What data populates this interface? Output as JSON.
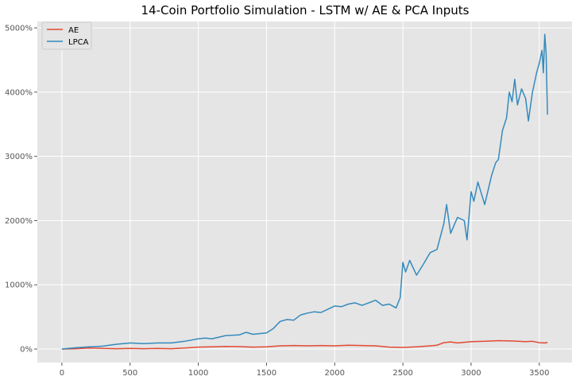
{
  "chart_data": {
    "type": "line",
    "title": "14-Coin Portfolio Simulation - LSTM w/ AE & PCA Inputs",
    "xlabel": "",
    "ylabel": "",
    "xlim": [
      -180,
      3740
    ],
    "ylim": [
      -210,
      5100
    ],
    "xticks": [
      0,
      500,
      1000,
      1500,
      2000,
      2500,
      3000,
      3500
    ],
    "xtick_labels": [
      "0",
      "500",
      "1000",
      "1500",
      "2000",
      "2500",
      "3000",
      "3500"
    ],
    "yticks": [
      0,
      1000,
      2000,
      3000,
      4000,
      5000
    ],
    "ytick_labels": [
      "0%",
      "1000%",
      "2000%",
      "3000%",
      "4000%",
      "5000%"
    ],
    "grid": true,
    "legend_position": "top-left",
    "series": [
      {
        "name": "AE",
        "color": "#E24A33",
        "points": [
          [
            0,
            0
          ],
          [
            100,
            5
          ],
          [
            200,
            15
          ],
          [
            300,
            10
          ],
          [
            400,
            5
          ],
          [
            500,
            10
          ],
          [
            600,
            5
          ],
          [
            700,
            10
          ],
          [
            800,
            5
          ],
          [
            900,
            15
          ],
          [
            1000,
            30
          ],
          [
            1100,
            35
          ],
          [
            1200,
            40
          ],
          [
            1300,
            38
          ],
          [
            1400,
            30
          ],
          [
            1500,
            35
          ],
          [
            1600,
            50
          ],
          [
            1700,
            55
          ],
          [
            1800,
            50
          ],
          [
            1900,
            55
          ],
          [
            2000,
            50
          ],
          [
            2100,
            60
          ],
          [
            2200,
            55
          ],
          [
            2300,
            50
          ],
          [
            2400,
            30
          ],
          [
            2500,
            25
          ],
          [
            2600,
            35
          ],
          [
            2700,
            50
          ],
          [
            2750,
            60
          ],
          [
            2800,
            100
          ],
          [
            2850,
            110
          ],
          [
            2900,
            95
          ],
          [
            3000,
            115
          ],
          [
            3100,
            120
          ],
          [
            3200,
            130
          ],
          [
            3300,
            125
          ],
          [
            3400,
            115
          ],
          [
            3450,
            120
          ],
          [
            3500,
            100
          ],
          [
            3540,
            95
          ],
          [
            3560,
            105
          ]
        ]
      },
      {
        "name": "LPCA",
        "color": "#348ABD",
        "points": [
          [
            0,
            0
          ],
          [
            100,
            20
          ],
          [
            200,
            35
          ],
          [
            300,
            45
          ],
          [
            400,
            75
          ],
          [
            500,
            95
          ],
          [
            600,
            85
          ],
          [
            700,
            95
          ],
          [
            800,
            95
          ],
          [
            900,
            120
          ],
          [
            1000,
            160
          ],
          [
            1050,
            170
          ],
          [
            1100,
            160
          ],
          [
            1200,
            210
          ],
          [
            1300,
            220
          ],
          [
            1350,
            260
          ],
          [
            1400,
            230
          ],
          [
            1500,
            250
          ],
          [
            1550,
            320
          ],
          [
            1600,
            430
          ],
          [
            1650,
            460
          ],
          [
            1700,
            450
          ],
          [
            1750,
            530
          ],
          [
            1800,
            560
          ],
          [
            1850,
            580
          ],
          [
            1900,
            570
          ],
          [
            1950,
            620
          ],
          [
            2000,
            670
          ],
          [
            2050,
            660
          ],
          [
            2100,
            700
          ],
          [
            2150,
            720
          ],
          [
            2200,
            680
          ],
          [
            2250,
            720
          ],
          [
            2300,
            760
          ],
          [
            2350,
            680
          ],
          [
            2400,
            700
          ],
          [
            2450,
            640
          ],
          [
            2480,
            800
          ],
          [
            2500,
            1350
          ],
          [
            2520,
            1200
          ],
          [
            2550,
            1380
          ],
          [
            2600,
            1150
          ],
          [
            2650,
            1320
          ],
          [
            2700,
            1500
          ],
          [
            2750,
            1550
          ],
          [
            2800,
            1950
          ],
          [
            2820,
            2250
          ],
          [
            2850,
            1800
          ],
          [
            2900,
            2050
          ],
          [
            2950,
            2000
          ],
          [
            2970,
            1700
          ],
          [
            3000,
            2450
          ],
          [
            3020,
            2300
          ],
          [
            3050,
            2600
          ],
          [
            3100,
            2250
          ],
          [
            3150,
            2700
          ],
          [
            3180,
            2900
          ],
          [
            3200,
            2950
          ],
          [
            3230,
            3400
          ],
          [
            3260,
            3600
          ],
          [
            3280,
            4000
          ],
          [
            3300,
            3850
          ],
          [
            3320,
            4200
          ],
          [
            3340,
            3800
          ],
          [
            3370,
            4050
          ],
          [
            3400,
            3900
          ],
          [
            3420,
            3550
          ],
          [
            3450,
            4000
          ],
          [
            3480,
            4300
          ],
          [
            3500,
            4450
          ],
          [
            3520,
            4650
          ],
          [
            3530,
            4300
          ],
          [
            3540,
            4900
          ],
          [
            3550,
            4600
          ],
          [
            3560,
            3650
          ]
        ]
      }
    ]
  }
}
